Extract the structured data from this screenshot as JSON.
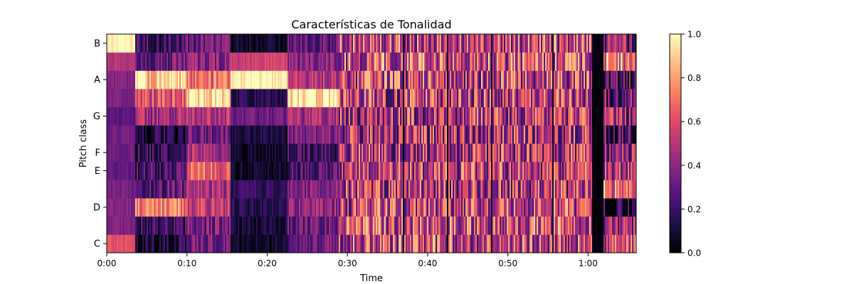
{
  "chart_data": {
    "type": "heatmap",
    "title": "Características de Tonalidad",
    "xlabel": "Time",
    "ylabel": "Pitch class",
    "x_ticks": [
      "0:00",
      "0:10",
      "0:20",
      "0:30",
      "0:40",
      "0:50",
      "1:00"
    ],
    "x_tick_seconds": [
      0,
      10,
      20,
      30,
      40,
      50,
      60
    ],
    "x_range_seconds": [
      0,
      66
    ],
    "y_tick_labels": [
      "C",
      "D",
      "E",
      "F",
      "G",
      "A",
      "B"
    ],
    "y_tick_rows": [
      0,
      2,
      4,
      5,
      7,
      9,
      11
    ],
    "pitch_rows": 12,
    "colorbar": {
      "range": [
        0,
        1
      ],
      "ticks": [
        "0.0",
        "0.2",
        "0.4",
        "0.6",
        "0.8",
        "1.0"
      ],
      "tick_values": [
        0,
        0.2,
        0.4,
        0.6,
        0.8,
        1.0
      ],
      "colormap": "magma",
      "colormap_stops": [
        "#000004",
        "#1c1044",
        "#4f127b",
        "#812581",
        "#b5367a",
        "#e55064",
        "#fb8761",
        "#fec287",
        "#fcfdbf"
      ]
    },
    "segments": [
      {
        "start": 0.0,
        "end": 3.5,
        "levels": [
          0.62,
          0.36,
          0.38,
          0.34,
          0.3,
          0.32,
          0.34,
          0.28,
          0.36,
          0.38,
          0.5,
          0.98
        ],
        "variance": 0.05
      },
      {
        "start": 3.5,
        "end": 10.0,
        "levels": [
          0.1,
          0.2,
          0.72,
          0.3,
          0.22,
          0.18,
          0.12,
          0.45,
          0.62,
          0.9,
          0.32,
          0.2
        ],
        "variance": 0.18
      },
      {
        "start": 10.0,
        "end": 15.5,
        "levels": [
          0.32,
          0.35,
          0.55,
          0.45,
          0.68,
          0.48,
          0.32,
          0.5,
          0.92,
          0.7,
          0.38,
          0.32
        ],
        "variance": 0.16
      },
      {
        "start": 15.5,
        "end": 22.5,
        "levels": [
          0.08,
          0.1,
          0.15,
          0.18,
          0.08,
          0.08,
          0.12,
          0.32,
          0.15,
          0.98,
          0.55,
          0.08
        ],
        "variance": 0.08
      },
      {
        "start": 22.5,
        "end": 29.0,
        "levels": [
          0.32,
          0.3,
          0.42,
          0.38,
          0.25,
          0.22,
          0.35,
          0.45,
          0.95,
          0.5,
          0.42,
          0.3
        ],
        "variance": 0.15
      },
      {
        "start": 29.0,
        "end": 60.5,
        "levels": [
          0.55,
          0.58,
          0.55,
          0.5,
          0.52,
          0.5,
          0.48,
          0.5,
          0.52,
          0.55,
          0.6,
          0.55
        ],
        "variance": 0.35
      },
      {
        "start": 60.5,
        "end": 62.0,
        "levels": [
          0.02,
          0.02,
          0.02,
          0.02,
          0.02,
          0.02,
          0.02,
          0.02,
          0.02,
          0.02,
          0.02,
          0.02
        ],
        "variance": 0.03
      },
      {
        "start": 62.0,
        "end": 66.0,
        "levels": [
          0.6,
          0.4,
          0.1,
          0.7,
          0.5,
          0.4,
          0.2,
          0.4,
          0.3,
          0.2,
          0.7,
          0.35
        ],
        "variance": 0.3
      }
    ]
  }
}
